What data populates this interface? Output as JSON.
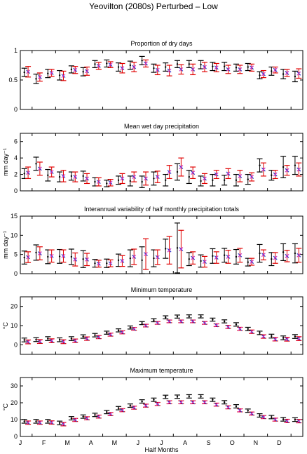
{
  "figure_title": "Yeovilton (2080s) Perturbed – Low",
  "colors": {
    "baseline": "#000000",
    "perturbed": "#e00000",
    "marker": "#3333cc",
    "marker2": "#cc33cc"
  },
  "chart_data": [
    {
      "type": "errorbar",
      "title": "Proportion of dry days",
      "xlabel": "",
      "ylabel": "",
      "ylim": [
        0,
        1
      ],
      "yticks": [
        0,
        0.5,
        1
      ],
      "ytick_labels": [
        "0",
        "0.5",
        "1"
      ],
      "series": [
        {
          "name": "",
          "color": "#000000",
          "values": [
            0.63,
            0.52,
            0.61,
            0.58,
            0.68,
            0.64,
            0.77,
            0.78,
            0.72,
            0.75,
            0.83,
            0.7,
            0.72,
            0.77,
            0.77,
            0.76,
            0.73,
            0.73,
            0.71,
            0.72,
            0.58,
            0.65,
            0.6,
            0.56
          ],
          "err": [
            0.07,
            0.08,
            0.07,
            0.08,
            0.06,
            0.07,
            0.06,
            0.06,
            0.07,
            0.07,
            0.07,
            0.07,
            0.07,
            0.06,
            0.06,
            0.07,
            0.07,
            0.07,
            0.06,
            0.06,
            0.06,
            0.07,
            0.08,
            0.09
          ]
        },
        {
          "name": "",
          "color": "#e00000",
          "values": [
            0.64,
            0.55,
            0.62,
            0.57,
            0.67,
            0.65,
            0.74,
            0.76,
            0.7,
            0.72,
            0.78,
            0.67,
            0.66,
            0.68,
            0.68,
            0.72,
            0.71,
            0.68,
            0.68,
            0.71,
            0.6,
            0.67,
            0.62,
            0.61
          ],
          "err": [
            0.09,
            0.07,
            0.06,
            0.08,
            0.06,
            0.07,
            0.06,
            0.05,
            0.08,
            0.08,
            0.06,
            0.08,
            0.09,
            0.08,
            0.09,
            0.08,
            0.07,
            0.07,
            0.07,
            0.06,
            0.06,
            0.05,
            0.06,
            0.08
          ]
        }
      ]
    },
    {
      "type": "errorbar",
      "title": "Mean wet day precipitation",
      "xlabel": "",
      "ylabel": "mm day⁻¹",
      "ylim": [
        0,
        7
      ],
      "yticks": [
        0,
        2,
        4,
        6
      ],
      "ytick_labels": [
        "0",
        "2",
        "4",
        "6"
      ],
      "series": [
        {
          "name": "",
          "color": "#000000",
          "values": [
            2.1,
            3.3,
            1.9,
            1.7,
            1.8,
            1.8,
            1.1,
            0.9,
            1.3,
            1.2,
            1.1,
            1.5,
            1.3,
            2.3,
            1.7,
            1.2,
            1.3,
            1.3,
            1.3,
            1.4,
            3.1,
            1.9,
            2.9,
            3.1
          ],
          "err": [
            0.6,
            0.8,
            0.7,
            0.6,
            0.5,
            0.6,
            0.5,
            0.4,
            0.5,
            0.6,
            0.7,
            0.8,
            0.7,
            1.0,
            0.8,
            0.6,
            0.7,
            0.6,
            0.7,
            0.6,
            0.8,
            0.6,
            1.3,
            1.1
          ]
        },
        {
          "name": "",
          "color": "#e00000",
          "values": [
            2.2,
            2.7,
            2.3,
            1.8,
            1.7,
            1.5,
            1.1,
            1.0,
            1.5,
            1.7,
            1.5,
            1.7,
            2.3,
            2.9,
            2.2,
            1.5,
            2.0,
            2.1,
            1.8,
            1.7,
            2.6,
            2.0,
            2.5,
            2.6
          ],
          "err": [
            0.7,
            0.8,
            0.6,
            0.7,
            0.6,
            0.6,
            0.5,
            0.4,
            0.6,
            0.6,
            0.8,
            0.7,
            0.8,
            1.1,
            0.7,
            0.6,
            0.5,
            0.6,
            0.7,
            0.5,
            0.8,
            0.5,
            0.6,
            0.8
          ]
        }
      ]
    },
    {
      "type": "errorbar",
      "title": "Interannual variability of half monthly precipitation totals",
      "xlabel": "",
      "ylabel": "mm day⁻¹",
      "ylim": [
        0,
        15
      ],
      "yticks": [
        0,
        5,
        10,
        15
      ],
      "ytick_labels": [
        "0",
        "5",
        "10",
        "15"
      ],
      "series": [
        {
          "name": "",
          "color": "#000000",
          "values": [
            4.2,
            5.5,
            4.4,
            4.5,
            4.4,
            3.8,
            2.7,
            2.7,
            3.5,
            4.0,
            3.5,
            4.0,
            6.5,
            6.7,
            3.8,
            3.3,
            4.6,
            4.8,
            4.4,
            3.0,
            5.3,
            3.8,
            5.6,
            5.3
          ],
          "err": [
            1.7,
            2.0,
            1.8,
            1.8,
            2.0,
            2.2,
            1.0,
            1.1,
            1.6,
            2.2,
            3.5,
            2.2,
            2.5,
            6.5,
            1.7,
            1.6,
            1.9,
            1.8,
            1.9,
            1.0,
            2.3,
            1.7,
            2.2,
            2.5
          ]
        },
        {
          "name": "",
          "color": "#e00000",
          "values": [
            4.3,
            5.3,
            4.6,
            4.6,
            3.7,
            3.7,
            2.6,
            2.7,
            3.3,
            4.4,
            5.1,
            4.3,
            6.1,
            6.4,
            4.1,
            3.1,
            4.2,
            4.4,
            4.8,
            3.1,
            4.9,
            4.1,
            4.6,
            4.8
          ],
          "err": [
            1.4,
            1.7,
            1.6,
            1.6,
            1.7,
            1.6,
            0.9,
            0.9,
            1.4,
            2.0,
            4.0,
            1.9,
            3.6,
            4.9,
            1.6,
            1.4,
            1.5,
            1.7,
            1.8,
            0.9,
            1.3,
            1.4,
            1.5,
            1.8
          ]
        }
      ]
    },
    {
      "type": "errorbar",
      "title": "Minimum temperature",
      "xlabel": "",
      "ylabel": "°C",
      "ylim": [
        -5,
        25
      ],
      "yticks": [
        0,
        10,
        20
      ],
      "ytick_labels": [
        "0",
        "10",
        "20"
      ],
      "series": [
        {
          "name": "",
          "color": "#000000",
          "values": [
            2.5,
            2.7,
            3.2,
            2.6,
            3.2,
            4.3,
            5.0,
            6.3,
            7.5,
            9.0,
            11.3,
            12.8,
            14.3,
            14.7,
            14.8,
            14.8,
            13.1,
            12.2,
            10.6,
            8.2,
            6.2,
            4.5,
            3.6,
            4.3
          ],
          "err": [
            1.0,
            1.0,
            1.0,
            1.0,
            1.0,
            0.9,
            0.9,
            0.8,
            0.8,
            0.8,
            0.8,
            0.8,
            0.8,
            0.8,
            0.8,
            0.8,
            0.8,
            0.8,
            0.9,
            0.9,
            0.9,
            1.0,
            1.0,
            1.0
          ]
        },
        {
          "name": "",
          "color": "#e00000",
          "values": [
            1.5,
            1.7,
            2.1,
            1.6,
            2.1,
            3.2,
            4.0,
            5.3,
            6.5,
            8.3,
            10.0,
            11.4,
            12.2,
            12.2,
            12.2,
            11.4,
            10.2,
            9.3,
            8.3,
            6.8,
            4.3,
            2.9,
            2.9,
            3.2
          ],
          "err": [
            1.0,
            1.0,
            1.0,
            1.0,
            0.9,
            0.9,
            0.8,
            0.8,
            0.8,
            0.7,
            0.7,
            0.7,
            0.7,
            0.7,
            0.7,
            0.7,
            0.7,
            0.8,
            0.8,
            0.9,
            0.9,
            0.9,
            1.0,
            1.0
          ]
        }
      ]
    },
    {
      "type": "errorbar",
      "title": "Maximum temperature",
      "xlabel": "Half Months",
      "ylabel": "°C",
      "ylim": [
        0,
        35
      ],
      "yticks": [
        0,
        10,
        20,
        30
      ],
      "ytick_labels": [
        "0",
        "10",
        "20",
        "30"
      ],
      "x_tick_labels": [
        "J",
        "F",
        "M",
        "A",
        "M",
        "J",
        "J",
        "A",
        "S",
        "O",
        "N",
        "D"
      ],
      "series": [
        {
          "name": "",
          "color": "#000000",
          "values": [
            9.0,
            9.0,
            9.0,
            8.0,
            10.8,
            11.8,
            12.8,
            14.5,
            16.8,
            18.3,
            20.8,
            21.8,
            23.5,
            23.6,
            23.8,
            23.8,
            21.8,
            20.3,
            17.9,
            15.3,
            12.5,
            11.5,
            10.2,
            10.0
          ],
          "err": [
            1.1,
            1.1,
            1.1,
            1.1,
            1.0,
            1.0,
            1.0,
            1.0,
            1.0,
            1.0,
            1.0,
            1.0,
            1.0,
            1.0,
            1.0,
            1.0,
            1.0,
            1.0,
            1.0,
            1.0,
            1.0,
            1.0,
            1.1,
            1.1
          ]
        },
        {
          "name": "",
          "color": "#e00000",
          "values": [
            8.2,
            8.2,
            8.3,
            7.3,
            9.8,
            10.8,
            11.8,
            13.3,
            15.6,
            17.1,
            18.3,
            19.3,
            20.3,
            20.3,
            20.3,
            20.3,
            18.9,
            17.3,
            15.5,
            13.6,
            11.5,
            10.0,
            9.2,
            9.1
          ],
          "err": [
            1.0,
            1.0,
            1.0,
            1.0,
            0.9,
            0.9,
            0.9,
            0.9,
            0.9,
            0.9,
            0.9,
            0.9,
            0.9,
            0.9,
            0.9,
            0.9,
            0.9,
            0.9,
            0.9,
            0.9,
            0.9,
            0.9,
            1.0,
            1.0
          ]
        }
      ]
    }
  ]
}
